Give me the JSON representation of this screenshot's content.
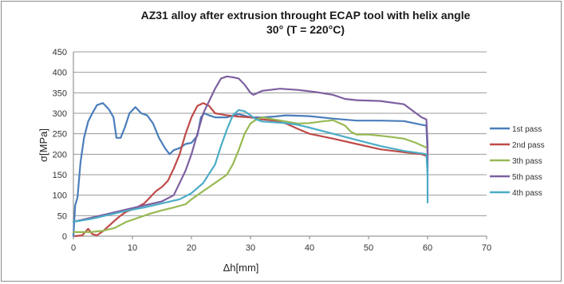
{
  "chart_data": {
    "type": "line",
    "title": "AZ31 alloy after extrusion throught ECAP tool with helix angle 30° (T = 220°C)",
    "title_lines": [
      "AZ31 alloy after extrusion throught ECAP tool with helix angle",
      "30° (T = 220°C)"
    ],
    "xlabel": "Δh[mm]",
    "ylabel": "σ[MPa]",
    "xlim": [
      0,
      70
    ],
    "ylim": [
      0,
      450
    ],
    "xticks": [
      0,
      10,
      20,
      30,
      40,
      50,
      60,
      70
    ],
    "yticks": [
      0,
      50,
      100,
      150,
      200,
      250,
      300,
      350,
      400,
      450
    ],
    "grid": "horizontal",
    "legend_position": "right",
    "series": [
      {
        "name": "1st pass",
        "color": "#4a7ebb",
        "points": [
          [
            0,
            0
          ],
          [
            0.3,
            75
          ],
          [
            0.7,
            95
          ],
          [
            1.2,
            180
          ],
          [
            1.8,
            240
          ],
          [
            2.5,
            280
          ],
          [
            3.2,
            300
          ],
          [
            4,
            320
          ],
          [
            5,
            325
          ],
          [
            6,
            310
          ],
          [
            6.8,
            290
          ],
          [
            7.3,
            240
          ],
          [
            8,
            240
          ],
          [
            8.7,
            265
          ],
          [
            9.5,
            300
          ],
          [
            10.5,
            315
          ],
          [
            11.5,
            300
          ],
          [
            12.5,
            295
          ],
          [
            13.5,
            275
          ],
          [
            14.5,
            240
          ],
          [
            15.5,
            215
          ],
          [
            16.3,
            200
          ],
          [
            17,
            210
          ],
          [
            18,
            215
          ],
          [
            19,
            225
          ],
          [
            20,
            228
          ],
          [
            21,
            245
          ],
          [
            21.6,
            290
          ],
          [
            22.2,
            300
          ],
          [
            23,
            295
          ],
          [
            24,
            290
          ],
          [
            26,
            290
          ],
          [
            28,
            298
          ],
          [
            30,
            290
          ],
          [
            32,
            290
          ],
          [
            34,
            292
          ],
          [
            36,
            295
          ],
          [
            40,
            293
          ],
          [
            44,
            287
          ],
          [
            48,
            282
          ],
          [
            52,
            282
          ],
          [
            56,
            281
          ],
          [
            59,
            272
          ],
          [
            59.8,
            270
          ],
          [
            60,
            200
          ],
          [
            60,
            150
          ]
        ]
      },
      {
        "name": "2nd pass",
        "color": "#be4b48",
        "points": [
          [
            0.3,
            0
          ],
          [
            1.5,
            2
          ],
          [
            2.5,
            18
          ],
          [
            3.2,
            5
          ],
          [
            4,
            2
          ],
          [
            5,
            12
          ],
          [
            6,
            25
          ],
          [
            7,
            38
          ],
          [
            8,
            50
          ],
          [
            9,
            60
          ],
          [
            10,
            65
          ],
          [
            11,
            72
          ],
          [
            12,
            80
          ],
          [
            13,
            95
          ],
          [
            14,
            110
          ],
          [
            15,
            120
          ],
          [
            16,
            135
          ],
          [
            17,
            165
          ],
          [
            18,
            200
          ],
          [
            19,
            250
          ],
          [
            20,
            290
          ],
          [
            21,
            318
          ],
          [
            22,
            325
          ],
          [
            23,
            318
          ],
          [
            24,
            300
          ],
          [
            26,
            295
          ],
          [
            28,
            292
          ],
          [
            30,
            290
          ],
          [
            32,
            285
          ],
          [
            34,
            282
          ],
          [
            36,
            275
          ],
          [
            38,
            262
          ],
          [
            40,
            250
          ],
          [
            44,
            238
          ],
          [
            48,
            225
          ],
          [
            52,
            212
          ],
          [
            56,
            205
          ],
          [
            59,
            200
          ],
          [
            60,
            195
          ]
        ]
      },
      {
        "name": "3th pass",
        "color": "#98b954",
        "points": [
          [
            0,
            10
          ],
          [
            3,
            10
          ],
          [
            5,
            13
          ],
          [
            7,
            20
          ],
          [
            9,
            35
          ],
          [
            11,
            45
          ],
          [
            13,
            55
          ],
          [
            15,
            63
          ],
          [
            17,
            70
          ],
          [
            19,
            78
          ],
          [
            20,
            90
          ],
          [
            22,
            110
          ],
          [
            24,
            130
          ],
          [
            26,
            150
          ],
          [
            27,
            175
          ],
          [
            28,
            210
          ],
          [
            29,
            250
          ],
          [
            30,
            275
          ],
          [
            31,
            285
          ],
          [
            32,
            290
          ],
          [
            34,
            285
          ],
          [
            36,
            280
          ],
          [
            38,
            275
          ],
          [
            40,
            276
          ],
          [
            42,
            280
          ],
          [
            44,
            283
          ],
          [
            46,
            270
          ],
          [
            47,
            255
          ],
          [
            48,
            248
          ],
          [
            50,
            248
          ],
          [
            52,
            245
          ],
          [
            54,
            242
          ],
          [
            56,
            238
          ],
          [
            58,
            228
          ],
          [
            60,
            215
          ]
        ]
      },
      {
        "name": "5th pass",
        "color": "#7d60a0",
        "points": [
          [
            0,
            35
          ],
          [
            3,
            45
          ],
          [
            6,
            55
          ],
          [
            9,
            65
          ],
          [
            12,
            75
          ],
          [
            15,
            85
          ],
          [
            17,
            100
          ],
          [
            18,
            130
          ],
          [
            19,
            160
          ],
          [
            20,
            200
          ],
          [
            21,
            250
          ],
          [
            22,
            300
          ],
          [
            23,
            330
          ],
          [
            24,
            360
          ],
          [
            25,
            385
          ],
          [
            26,
            390
          ],
          [
            27,
            388
          ],
          [
            28,
            385
          ],
          [
            29,
            370
          ],
          [
            30,
            350
          ],
          [
            30.5,
            345
          ],
          [
            32,
            355
          ],
          [
            35,
            360
          ],
          [
            38,
            357
          ],
          [
            41,
            352
          ],
          [
            44,
            345
          ],
          [
            46,
            335
          ],
          [
            48,
            332
          ],
          [
            52,
            330
          ],
          [
            56,
            322
          ],
          [
            59,
            290
          ],
          [
            59.8,
            285
          ],
          [
            60,
            225
          ],
          [
            60,
            185
          ]
        ]
      },
      {
        "name": "4th pass",
        "color": "#4bacc6",
        "points": [
          [
            0,
            35
          ],
          [
            3,
            42
          ],
          [
            6,
            52
          ],
          [
            9,
            62
          ],
          [
            12,
            70
          ],
          [
            15,
            80
          ],
          [
            18,
            90
          ],
          [
            20,
            105
          ],
          [
            22,
            130
          ],
          [
            24,
            175
          ],
          [
            25,
            220
          ],
          [
            26,
            260
          ],
          [
            27,
            295
          ],
          [
            28,
            308
          ],
          [
            29,
            305
          ],
          [
            30,
            295
          ],
          [
            31,
            285
          ],
          [
            32,
            280
          ],
          [
            34,
            278
          ],
          [
            36,
            276
          ],
          [
            38,
            272
          ],
          [
            40,
            265
          ],
          [
            44,
            250
          ],
          [
            48,
            235
          ],
          [
            52,
            220
          ],
          [
            56,
            208
          ],
          [
            59,
            202
          ],
          [
            59.8,
            200
          ],
          [
            60,
            150
          ],
          [
            60,
            82
          ]
        ]
      }
    ]
  }
}
